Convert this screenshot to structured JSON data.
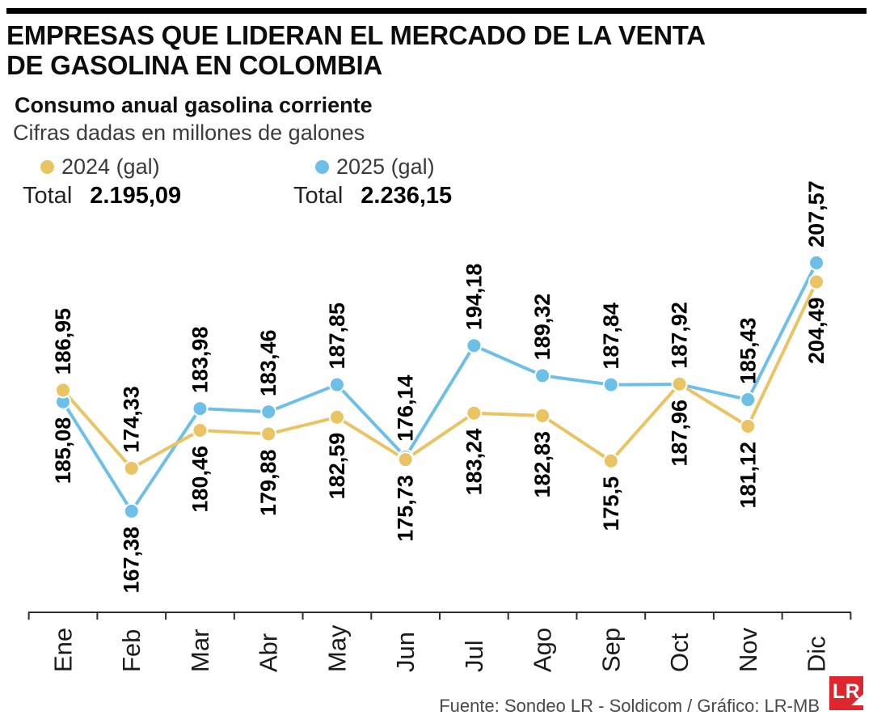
{
  "header": {
    "title_line1": "EMPRESAS QUE LIDERAN EL MERCADO DE LA VENTA",
    "title_line2": "DE GASOLINA EN COLOMBIA",
    "subtitle": "Consumo anual gasolina corriente",
    "note": "Cifras dadas en millones de galones"
  },
  "legend": {
    "items": [
      {
        "label": "2024 (gal)",
        "color": "#eac362",
        "total_label": "Total",
        "total_value": "2.195,09"
      },
      {
        "label": "2025 (gal)",
        "color": "#6cc0e8",
        "total_label": "Total",
        "total_value": "2.236,15"
      }
    ]
  },
  "chart_data": {
    "type": "line",
    "title": "Consumo anual gasolina corriente",
    "units": "millones de galones",
    "categories": [
      "Ene",
      "Feb",
      "Mar",
      "Abr",
      "May",
      "Jun",
      "Jul",
      "Ago",
      "Sep",
      "Oct",
      "Nov",
      "Dic"
    ],
    "series": [
      {
        "name": "2024 (gal)",
        "color": "#eac362",
        "values": [
          186.95,
          174.33,
          180.46,
          179.88,
          182.59,
          175.73,
          183.24,
          182.83,
          175.5,
          187.96,
          181.12,
          204.49
        ],
        "labels": [
          "186,95",
          "174,33",
          "180,46",
          "179,88",
          "182,59",
          "175,73",
          "183,24",
          "182,83",
          "175,5",
          "187,96",
          "181,12",
          "204,49"
        ],
        "total": "2.195,09"
      },
      {
        "name": "2025 (gal)",
        "color": "#6cc0e8",
        "values": [
          185.08,
          167.38,
          183.98,
          183.46,
          187.85,
          176.14,
          194.18,
          189.32,
          187.84,
          187.92,
          185.43,
          207.57
        ],
        "labels": [
          "185,08",
          "167,38",
          "183,98",
          "183,46",
          "187,85",
          "176,14",
          "194,18",
          "189,32",
          "187,84",
          "187,92",
          "185,43",
          "207,57"
        ],
        "total": "2.236,15"
      }
    ],
    "top_label_series": [
      0,
      0,
      1,
      1,
      1,
      1,
      1,
      1,
      1,
      1,
      1,
      1
    ],
    "ylim": [
      160,
      215
    ],
    "grid": false,
    "legend_position": "top"
  },
  "footer": {
    "source": "Fuente: Sondeo LR - Soldicom / Gráfico: LR-MB",
    "logo_text": "LR",
    "logo_color": "#e0262d"
  }
}
